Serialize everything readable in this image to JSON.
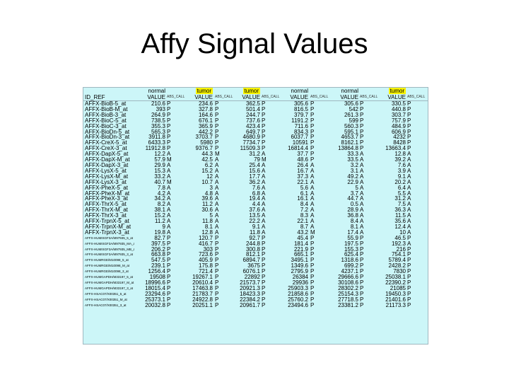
{
  "title": "Affy Signal Values",
  "table": {
    "group_row": [
      "normal",
      "tumor",
      "tumor",
      "normal",
      "normal",
      "tumor"
    ],
    "highlighted": [
      false,
      true,
      true,
      false,
      false,
      true
    ],
    "id_header": "ID_REF",
    "value_header": "VALUE",
    "abs_header": "ABS_CALL",
    "rows": [
      [
        "AFFX-BioB-5_at",
        "210.6",
        "P",
        "234.6",
        "P",
        "362.5",
        "P",
        "305.6",
        "P",
        "305.6",
        "P",
        "330.5",
        "P"
      ],
      [
        "AFFX-BioB-M_at",
        "393",
        "P",
        "327.8",
        "P",
        "501.4",
        "P",
        "816.5",
        "P",
        "542",
        "P",
        "440.8",
        "P"
      ],
      [
        "AFFX-BioB-3_at",
        "264.9",
        "P",
        "164.6",
        "P",
        "244.7",
        "P",
        "379.7",
        "P",
        "261.3",
        "P",
        "303.7",
        "P"
      ],
      [
        "AFFX-BioC-5_at",
        "738.5",
        "P",
        "676.1",
        "P",
        "737.6",
        "P",
        "1191.2",
        "P",
        "599",
        "P",
        "757.9",
        "P"
      ],
      [
        "AFFX-BioC-3_at",
        "355.3",
        "P",
        "365.9",
        "P",
        "423.4",
        "P",
        "711.6",
        "P",
        "560.3",
        "P",
        "484.9",
        "P"
      ],
      [
        "AFFX-BioDn-5_at",
        "565.3",
        "P",
        "442.2",
        "P",
        "649.7",
        "P",
        "834.3",
        "P",
        "595.1",
        "P",
        "606.9",
        "P"
      ],
      [
        "AFFX-BioDn-3_at",
        "3911.8",
        "P",
        "3703.7",
        "P",
        "4680.9",
        "P",
        "6037.7",
        "P",
        "4653.7",
        "P",
        "4232",
        "P"
      ],
      [
        "AFFX-CreX-5_at",
        "6433.3",
        "P",
        "5980",
        "P",
        "7734.7",
        "P",
        "10591",
        "P",
        "8162.1",
        "P",
        "8428",
        "P"
      ],
      [
        "AFFX-CreX-3_at",
        "11912.8",
        "P",
        "9376.7",
        "P",
        "11509.3",
        "P",
        "16814.4",
        "P",
        "13864.8",
        "P",
        "13663.4",
        "P"
      ],
      [
        "AFFX-DapX-5_at",
        "12.2",
        "A",
        "44.3",
        "M",
        "31.2",
        "A",
        "37.7",
        "P",
        "33.3",
        "A",
        "12.8",
        "A"
      ],
      [
        "AFFX-DapX-M_at",
        "57.9",
        "M",
        "42.5",
        "A",
        "79",
        "M",
        "48.6",
        "P",
        "33.5",
        "A",
        "39.2",
        "A"
      ],
      [
        "AFFX-DapX-3_at",
        "29.9",
        "A",
        "6.2",
        "A",
        "25.4",
        "A",
        "26.4",
        "A",
        "3.2",
        "A",
        "7.6",
        "A"
      ],
      [
        "AFFX-LysX-5_at",
        "15.3",
        "A",
        "15.2",
        "A",
        "15.6",
        "A",
        "16.7",
        "A",
        "3.1",
        "A",
        "3.9",
        "A"
      ],
      [
        "AFFX-LysX-M_at",
        "33.2",
        "A",
        "12",
        "A",
        "17.7",
        "A",
        "37.3",
        "A",
        "49.2",
        "A",
        "9.1",
        "A"
      ],
      [
        "AFFX-LysX-3_at",
        "40.7",
        "M",
        "10.7",
        "A",
        "36.2",
        "A",
        "22.1",
        "A",
        "22.9",
        "A",
        "20.2",
        "A"
      ],
      [
        "AFFX-PheX-5_at",
        "7.8",
        "A",
        "3",
        "A",
        "7.6",
        "A",
        "5.6",
        "A",
        "5",
        "A",
        "6.4",
        "A"
      ],
      [
        "AFFX-PheX-M_at",
        "4.2",
        "A",
        "4.8",
        "A",
        "6.8",
        "A",
        "6.1",
        "A",
        "3.7",
        "A",
        "5.5",
        "A"
      ],
      [
        "AFFX-PheX-3_at",
        "34.2",
        "A",
        "39.6",
        "A",
        "19.4",
        "A",
        "16.1",
        "A",
        "44.7",
        "A",
        "31.2",
        "A"
      ],
      [
        "AFFX-ThrX-5_at",
        "8.2",
        "A",
        "11.2",
        "A",
        "4.4",
        "A",
        "8.4",
        "A",
        "0.5",
        "A",
        "7.5",
        "A"
      ],
      [
        "AFFX-ThrX-M_at",
        "38.1",
        "A",
        "30.6",
        "A",
        "37.6",
        "A",
        "7.2",
        "A",
        "28.9",
        "A",
        "36.3",
        "A"
      ],
      [
        "AFFX-ThrX-3_at",
        "15.2",
        "A",
        "5",
        "A",
        "13.5",
        "A",
        "8.3",
        "A",
        "36.8",
        "A",
        "11.5",
        "A"
      ],
      [
        "AFFX-TrpnX-5_at",
        "11.2",
        "A",
        "11.8",
        "A",
        "22.2",
        "A",
        "22.1",
        "A",
        "8.4",
        "A",
        "35.6",
        "A"
      ],
      [
        "AFFX-TrpnX-M_at",
        "9",
        "A",
        "8.1",
        "A",
        "9.1",
        "A",
        "8.7",
        "A",
        "8.1",
        "A",
        "12.4",
        "A"
      ],
      [
        "AFFX-TrpnX-3_at",
        "19.8",
        "A",
        "12.8",
        "A",
        "11.8",
        "A",
        "43.2",
        "M",
        "17.4",
        "A",
        "10",
        "A"
      ],
      [
        "AFFX-HUMISGF3A/M97935_5_at",
        "82.7",
        "P",
        "120.7",
        "P",
        "92.7",
        "P",
        "45.4",
        "P",
        "55.9",
        "P",
        "46.5",
        "P"
      ],
      [
        "AFFX-HUMISGF3A/M97935_MA_at",
        "397.5",
        "P",
        "416.7",
        "P",
        "244.8",
        "P",
        "181.4",
        "P",
        "197.5",
        "P",
        "192.3",
        "A"
      ],
      [
        "AFFX-HUMISGF3A/M97935_MB_at",
        "206.2",
        "P",
        "303",
        "P",
        "300.8",
        "P",
        "221.9",
        "P",
        "155.3",
        "P",
        "216",
        "P"
      ],
      [
        "AFFX-HUMISGF3A/M97935_3_at",
        "663.8",
        "P",
        "723.6",
        "P",
        "812.1",
        "P",
        "665.1",
        "P",
        "625.4",
        "P",
        "754.1",
        "P"
      ],
      [
        "AFFX-HUMRGE/M10098_5_at",
        "547.5",
        "P",
        "405.9",
        "P",
        "6894.7",
        "P",
        "3495.1",
        "P",
        "1318.6",
        "P",
        "5789.4",
        "P"
      ],
      [
        "AFFX-HUMRGE/M10098_M_at",
        "239.1",
        "P",
        "175.8",
        "P",
        "3675",
        "P",
        "1349.6",
        "P",
        "699.2",
        "P",
        "2428.2",
        "P"
      ],
      [
        "AFFX-HUMRGE/M10098_3_at",
        "1256.4",
        "P",
        "721.4",
        "P",
        "6076.1",
        "P",
        "2795.9",
        "P",
        "4237.1",
        "P",
        "7830",
        "P"
      ],
      [
        "AFFX-HUMGAPDH/M33197_5_at",
        "19508",
        "P",
        "19267.1",
        "P",
        "22892",
        "P",
        "26384",
        "P",
        "29666.6",
        "P",
        "25038.1",
        "P"
      ],
      [
        "AFFX-HUMGAPDH/M33197_M_at",
        "18996.6",
        "P",
        "20610.4",
        "P",
        "21573.7",
        "P",
        "29936",
        "P",
        "30108.6",
        "P",
        "22390.2",
        "P"
      ],
      [
        "AFFX-HUMGAPDH/M33197_3_at",
        "18015.4",
        "P",
        "17463.8",
        "P",
        "20921.3",
        "P",
        "25903.3",
        "P",
        "28302.2",
        "P",
        "21085",
        "P"
      ],
      [
        "AFFX-HSAC07/X00351_5_at",
        "23294.6",
        "P",
        "21783.7",
        "P",
        "18423.3",
        "P",
        "21858.6",
        "P",
        "25154.3",
        "P",
        "19450.3",
        "P"
      ],
      [
        "AFFX-HSAC07/X00351_M_at",
        "25373.1",
        "P",
        "24922.8",
        "P",
        "22384.2",
        "P",
        "25760.2",
        "P",
        "27718.5",
        "P",
        "21401.6",
        "P"
      ],
      [
        "AFFX-HSAC07/X00351_3_at",
        "20032.8",
        "P",
        "20251.1",
        "P",
        "20961.7",
        "P",
        "23494.6",
        "P",
        "23381.2",
        "P",
        "21173.3",
        "P"
      ]
    ]
  }
}
